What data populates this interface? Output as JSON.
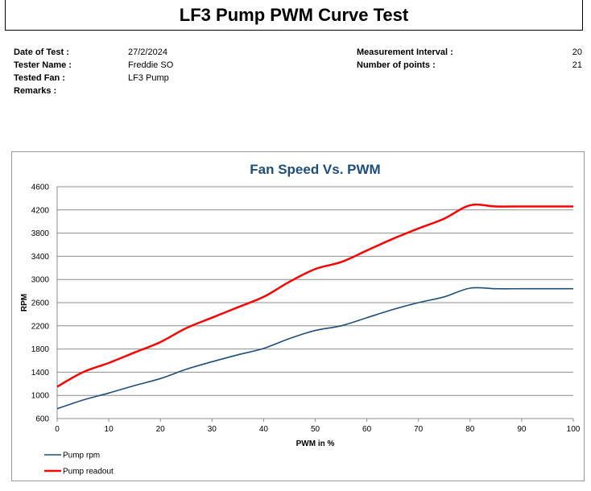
{
  "report": {
    "title": "LF3 Pump PWM Curve Test",
    "fields_left": [
      {
        "label": "Date of Test :",
        "value": "27/2/2024"
      },
      {
        "label": "Tester Name :",
        "value": "Freddie SO"
      },
      {
        "label": "Tested Fan :",
        "value": "LF3 Pump"
      },
      {
        "label": "Remarks :",
        "value": ""
      }
    ],
    "fields_right": [
      {
        "label": "Measurement Interval :",
        "value": "20"
      },
      {
        "label": "Number of points :",
        "value": "21"
      }
    ]
  },
  "chart_data": {
    "type": "line",
    "title": "Fan Speed Vs. PWM",
    "xlabel": "PWM in %",
    "ylabel": "RPM",
    "xlim": [
      0,
      100
    ],
    "ylim": [
      600,
      4600
    ],
    "xticks": [
      0,
      10,
      20,
      30,
      40,
      50,
      60,
      70,
      80,
      90,
      100
    ],
    "yticks": [
      600,
      1000,
      1400,
      1800,
      2200,
      2600,
      3000,
      3400,
      3800,
      4200,
      4600
    ],
    "grid": true,
    "legend_position": "bottom-left",
    "x": [
      0,
      5,
      10,
      15,
      20,
      25,
      30,
      35,
      40,
      45,
      50,
      55,
      60,
      65,
      70,
      75,
      80,
      85,
      90,
      95,
      100
    ],
    "series": [
      {
        "name": "Pump rpm",
        "color": "#1f4e79",
        "values": [
          770,
          920,
          1040,
          1170,
          1290,
          1450,
          1580,
          1700,
          1810,
          1980,
          2120,
          2200,
          2340,
          2480,
          2600,
          2700,
          2850,
          2840,
          2840,
          2840,
          2840
        ]
      },
      {
        "name": "Pump readout",
        "color": "#ff0000",
        "values": [
          1150,
          1400,
          1560,
          1740,
          1920,
          2160,
          2340,
          2520,
          2700,
          2960,
          3180,
          3300,
          3500,
          3700,
          3880,
          4050,
          4280,
          4260,
          4260,
          4260,
          4260
        ]
      }
    ]
  }
}
